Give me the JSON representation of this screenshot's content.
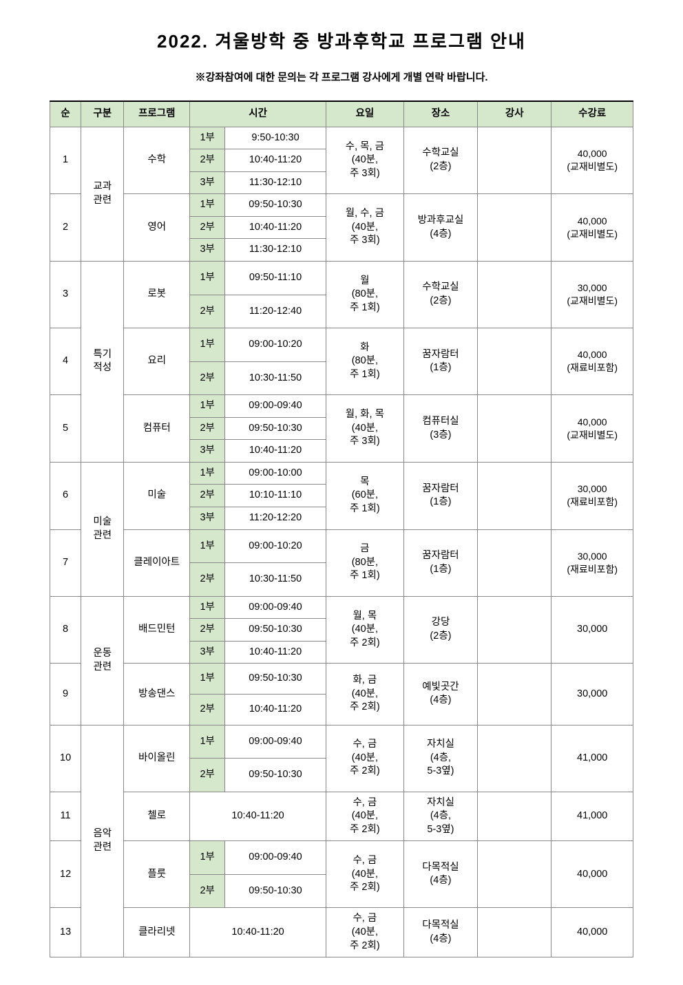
{
  "doc": {
    "title": "2022. 겨울방학 중 방과후학교 프로그램 안내",
    "subtitle": "※강좌참여에 대한 문의는 각 프로그램 강사에게 개별 연락 바랍니다."
  },
  "headers": {
    "num": "순",
    "category": "구분",
    "program": "프로그램",
    "time": "시간",
    "day": "요일",
    "place": "장소",
    "teacher": "강사",
    "fee": "수강료"
  },
  "categories": {
    "subject": "교과\n관련",
    "specialty": "특기\n적성",
    "art": "미술\n관련",
    "sport": "운동\n관련",
    "music": "음악\n관련"
  },
  "parts": {
    "p1": "1부",
    "p2": "2부",
    "p3": "3부"
  },
  "programs": {
    "math": {
      "num": "1",
      "name": "수학",
      "times": [
        "9:50-10:30",
        "10:40-11:20",
        "11:30-12:10"
      ],
      "day": "수, 목, 금\n(40분,\n주 3회)",
      "place": "수학교실\n(2층)",
      "teacher": "",
      "fee": "40,000\n(교재비별도)"
    },
    "english": {
      "num": "2",
      "name": "영어",
      "times": [
        "09:50-10:30",
        "10:40-11:20",
        "11:30-12:10"
      ],
      "day": "월, 수, 금\n(40분,\n주 3회)",
      "place": "방과후교실\n(4층)",
      "teacher": "",
      "fee": "40,000\n(교재비별도)"
    },
    "robot": {
      "num": "3",
      "name": "로봇",
      "times": [
        "09:50-11:10",
        "11:20-12:40"
      ],
      "day": "월\n(80분,\n주 1회)",
      "place": "수학교실\n(2층)",
      "teacher": "",
      "fee": "30,000\n(교재비별도)"
    },
    "cook": {
      "num": "4",
      "name": "요리",
      "times": [
        "09:00-10:20",
        "10:30-11:50"
      ],
      "day": "화\n(80분,\n주 1회)",
      "place": "꿈자람터\n(1층)",
      "teacher": "",
      "fee": "40,000\n(재료비포함)"
    },
    "computer": {
      "num": "5",
      "name": "컴퓨터",
      "times": [
        "09:00-09:40",
        "09:50-10:30",
        "10:40-11:20"
      ],
      "day": "월, 화, 목\n(40분,\n주 3회)",
      "place": "컴퓨터실\n(3층)",
      "teacher": "",
      "fee": "40,000\n(교재비별도)"
    },
    "artclass": {
      "num": "6",
      "name": "미술",
      "times": [
        "09:00-10:00",
        "10:10-11:10",
        "11:20-12:20"
      ],
      "day": "목\n(60분,\n주 1회)",
      "place": "꿈자람터\n(1층)",
      "teacher": "",
      "fee": "30,000\n(재료비포함)"
    },
    "clay": {
      "num": "7",
      "name": "클레이아트",
      "times": [
        "09:00-10:20",
        "10:30-11:50"
      ],
      "day": "금\n(80분,\n주 1회)",
      "place": "꿈자람터\n(1층)",
      "teacher": "",
      "fee": "30,000\n(재료비포함)"
    },
    "badminton": {
      "num": "8",
      "name": "배드민턴",
      "times": [
        "09:00-09:40",
        "09:50-10:30",
        "10:40-11:20"
      ],
      "day": "월, 목\n(40분,\n주 2회)",
      "place": "강당\n(2층)",
      "teacher": "",
      "fee": "30,000"
    },
    "dance": {
      "num": "9",
      "name": "방송댄스",
      "times": [
        "09:50-10:30",
        "10:40-11:20"
      ],
      "day": "화, 금\n(40분,\n주 2회)",
      "place": "예빛곳간\n(4층)",
      "teacher": "",
      "fee": "30,000"
    },
    "violin": {
      "num": "10",
      "name": "바이올린",
      "times": [
        "09:00-09:40",
        "09:50-10:30"
      ],
      "day": "수, 금\n(40분,\n주 2회)",
      "place": "자치실\n(4층,\n5-3옆)",
      "teacher": "",
      "fee": "41,000"
    },
    "cello": {
      "num": "11",
      "name": "첼로",
      "time_single": "10:40-11:20",
      "day": "수, 금\n(40분,\n주 2회)",
      "place": "자치실\n(4층,\n5-3옆)",
      "teacher": "",
      "fee": "41,000"
    },
    "flute": {
      "num": "12",
      "name": "플룻",
      "times": [
        "09:00-09:40",
        "09:50-10:30"
      ],
      "day": "수, 금\n(40분,\n주 2회)",
      "place": "다목적실\n(4층)",
      "teacher": "",
      "fee": "40,000"
    },
    "clarinet": {
      "num": "13",
      "name": "클라리넷",
      "time_single": "10:40-11:20",
      "day": "수, 금\n(40분,\n주 2회)",
      "place": "다목적실\n(4층)",
      "teacher": "",
      "fee": "40,000"
    }
  },
  "style": {
    "header_bg": "#d6e8cc",
    "part_bg": "#d6e8cc",
    "border_color": "#888888",
    "font_body": 14.5,
    "font_title": 26
  }
}
